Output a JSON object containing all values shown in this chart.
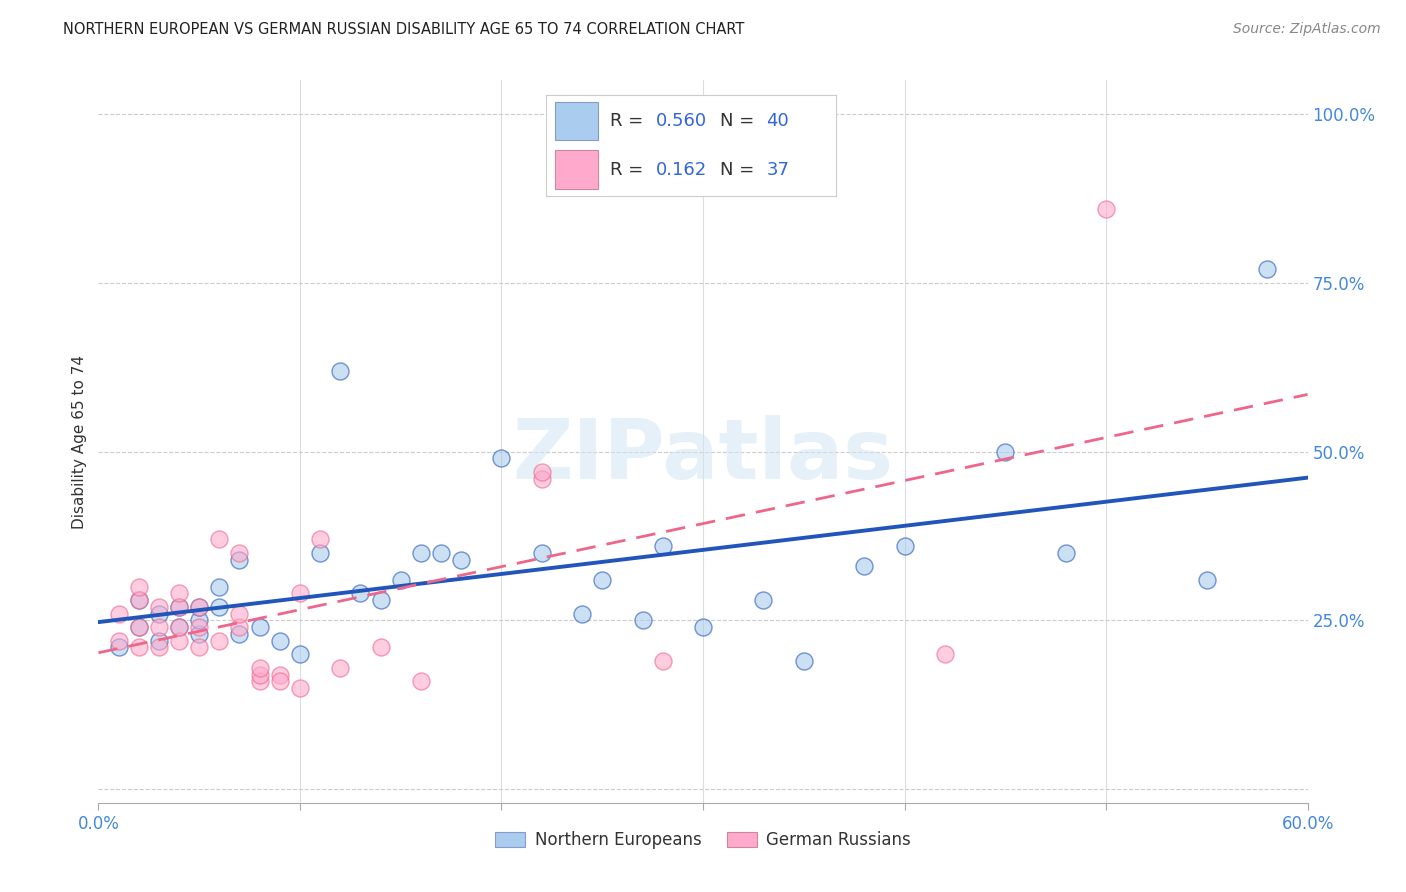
{
  "title": "NORTHERN EUROPEAN VS GERMAN RUSSIAN DISABILITY AGE 65 TO 74 CORRELATION CHART",
  "source": "Source: ZipAtlas.com",
  "ylabel": "Disability Age 65 to 74",
  "xlim": [
    0.0,
    0.6
  ],
  "ylim": [
    -0.02,
    1.05
  ],
  "xticks": [
    0.0,
    0.1,
    0.2,
    0.3,
    0.4,
    0.5,
    0.6
  ],
  "xticklabels": [
    "0.0%",
    "",
    "",
    "",
    "",
    "",
    "60.0%"
  ],
  "yticks": [
    0.0,
    0.25,
    0.5,
    0.75,
    1.0
  ],
  "yticklabels": [
    "",
    "25.0%",
    "50.0%",
    "75.0%",
    "100.0%"
  ],
  "legend_blue_rv": "0.560",
  "legend_blue_nv": "40",
  "legend_pink_rv": "0.162",
  "legend_pink_nv": "37",
  "blue_scatter_color": "#AACCEE",
  "pink_scatter_color": "#FFAACC",
  "blue_line_color": "#2255BB",
  "pink_line_color": "#EE6688",
  "watermark_zip": "ZIP",
  "watermark_atlas": "atlas",
  "background_color": "#FFFFFF",
  "grid_color": "#CCCCCC",
  "ne_x": [
    0.01,
    0.02,
    0.02,
    0.03,
    0.03,
    0.04,
    0.04,
    0.05,
    0.05,
    0.05,
    0.06,
    0.06,
    0.07,
    0.07,
    0.08,
    0.09,
    0.1,
    0.11,
    0.12,
    0.13,
    0.14,
    0.15,
    0.16,
    0.17,
    0.18,
    0.2,
    0.22,
    0.24,
    0.25,
    0.27,
    0.28,
    0.3,
    0.33,
    0.35,
    0.38,
    0.4,
    0.45,
    0.48,
    0.55,
    0.58
  ],
  "ne_y": [
    0.21,
    0.24,
    0.28,
    0.22,
    0.26,
    0.24,
    0.27,
    0.23,
    0.25,
    0.27,
    0.27,
    0.3,
    0.23,
    0.34,
    0.24,
    0.22,
    0.2,
    0.35,
    0.62,
    0.29,
    0.28,
    0.31,
    0.35,
    0.35,
    0.34,
    0.49,
    0.35,
    0.26,
    0.31,
    0.25,
    0.36,
    0.24,
    0.28,
    0.19,
    0.33,
    0.36,
    0.5,
    0.35,
    0.31,
    0.77
  ],
  "gr_x": [
    0.01,
    0.01,
    0.02,
    0.02,
    0.02,
    0.02,
    0.03,
    0.03,
    0.03,
    0.04,
    0.04,
    0.04,
    0.04,
    0.05,
    0.05,
    0.05,
    0.06,
    0.06,
    0.07,
    0.07,
    0.07,
    0.08,
    0.08,
    0.08,
    0.09,
    0.09,
    0.1,
    0.1,
    0.11,
    0.12,
    0.14,
    0.16,
    0.22,
    0.22,
    0.28,
    0.42,
    0.5
  ],
  "gr_y": [
    0.22,
    0.26,
    0.21,
    0.24,
    0.28,
    0.3,
    0.21,
    0.24,
    0.27,
    0.22,
    0.24,
    0.27,
    0.29,
    0.21,
    0.24,
    0.27,
    0.22,
    0.37,
    0.24,
    0.26,
    0.35,
    0.16,
    0.17,
    0.18,
    0.17,
    0.16,
    0.15,
    0.29,
    0.37,
    0.18,
    0.21,
    0.16,
    0.46,
    0.47,
    0.19,
    0.2,
    0.86
  ]
}
